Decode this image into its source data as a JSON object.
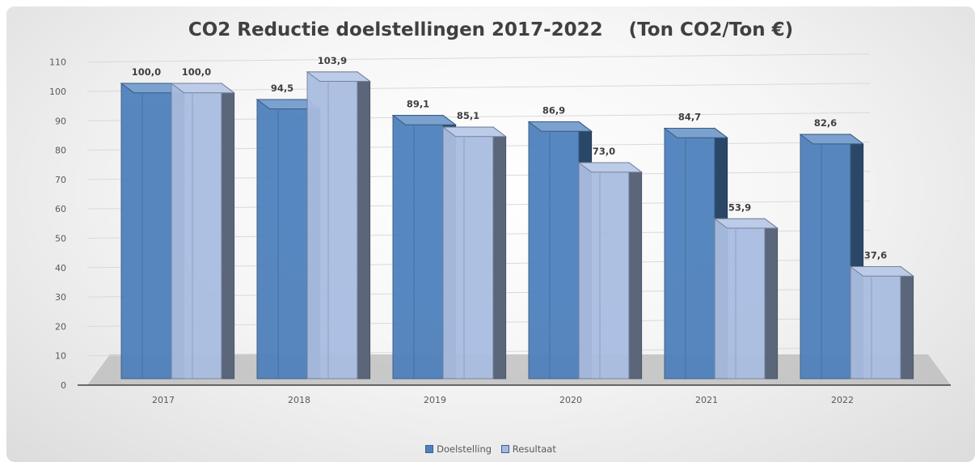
{
  "chart_data": {
    "type": "bar",
    "title": "CO2 Reductie doelstellingen 2017-2022    (Ton CO2/Ton €)",
    "categories": [
      "2017",
      "2018",
      "2019",
      "2020",
      "2021",
      "2022"
    ],
    "series": [
      {
        "name": "Doelstelling",
        "values": [
          100.0,
          94.5,
          89.1,
          86.9,
          84.7,
          82.6
        ],
        "labels": [
          "100,0",
          "94,5",
          "89,1",
          "86,9",
          "84,7",
          "82,6"
        ],
        "color": "#4f81bd"
      },
      {
        "name": "Resultaat",
        "values": [
          100.0,
          103.9,
          85.1,
          73.0,
          53.9,
          37.6
        ],
        "labels": [
          "100,0",
          "103,9",
          "85,1",
          "73,0",
          "53,9",
          "37,6"
        ],
        "color": "#a5badf"
      }
    ],
    "ylim": [
      0,
      110
    ],
    "yticks": [
      0,
      10,
      20,
      30,
      40,
      50,
      60,
      70,
      80,
      90,
      100,
      110
    ],
    "grid": true,
    "legend": "bottom",
    "style": "3d-clustered-column"
  }
}
